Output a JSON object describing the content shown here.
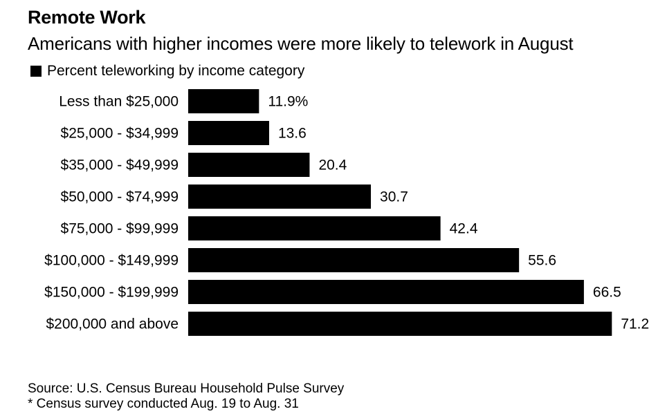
{
  "header": {
    "title": "Remote Work",
    "subtitle": "Americans with higher incomes were more likely to telework in August"
  },
  "legend": {
    "label": "Percent teleworking by income category",
    "color": "#000000"
  },
  "chart_data": {
    "type": "bar",
    "orientation": "horizontal",
    "categories": [
      "Less than $25,000",
      "$25,000 - $34,999",
      "$35,000 - $49,999",
      "$50,000 - $74,999",
      "$75,000 - $99,999",
      "$100,000 - $149,999",
      "$150,000 - $199,999",
      "$200,000 and above"
    ],
    "series": [
      {
        "name": "Percent teleworking by income category",
        "values": [
          11.9,
          13.6,
          20.4,
          30.7,
          42.4,
          55.6,
          66.5,
          71.2
        ],
        "value_labels": [
          "11.9%",
          "13.6",
          "20.4",
          "30.7",
          "42.4",
          "55.6",
          "66.5",
          "71.2"
        ],
        "color": "#000000"
      }
    ],
    "grid": false
  },
  "footer": {
    "source": "Source: U.S. Census Bureau Household Pulse Survey",
    "note": "* Census survey conducted Aug. 19 to Aug. 31"
  }
}
